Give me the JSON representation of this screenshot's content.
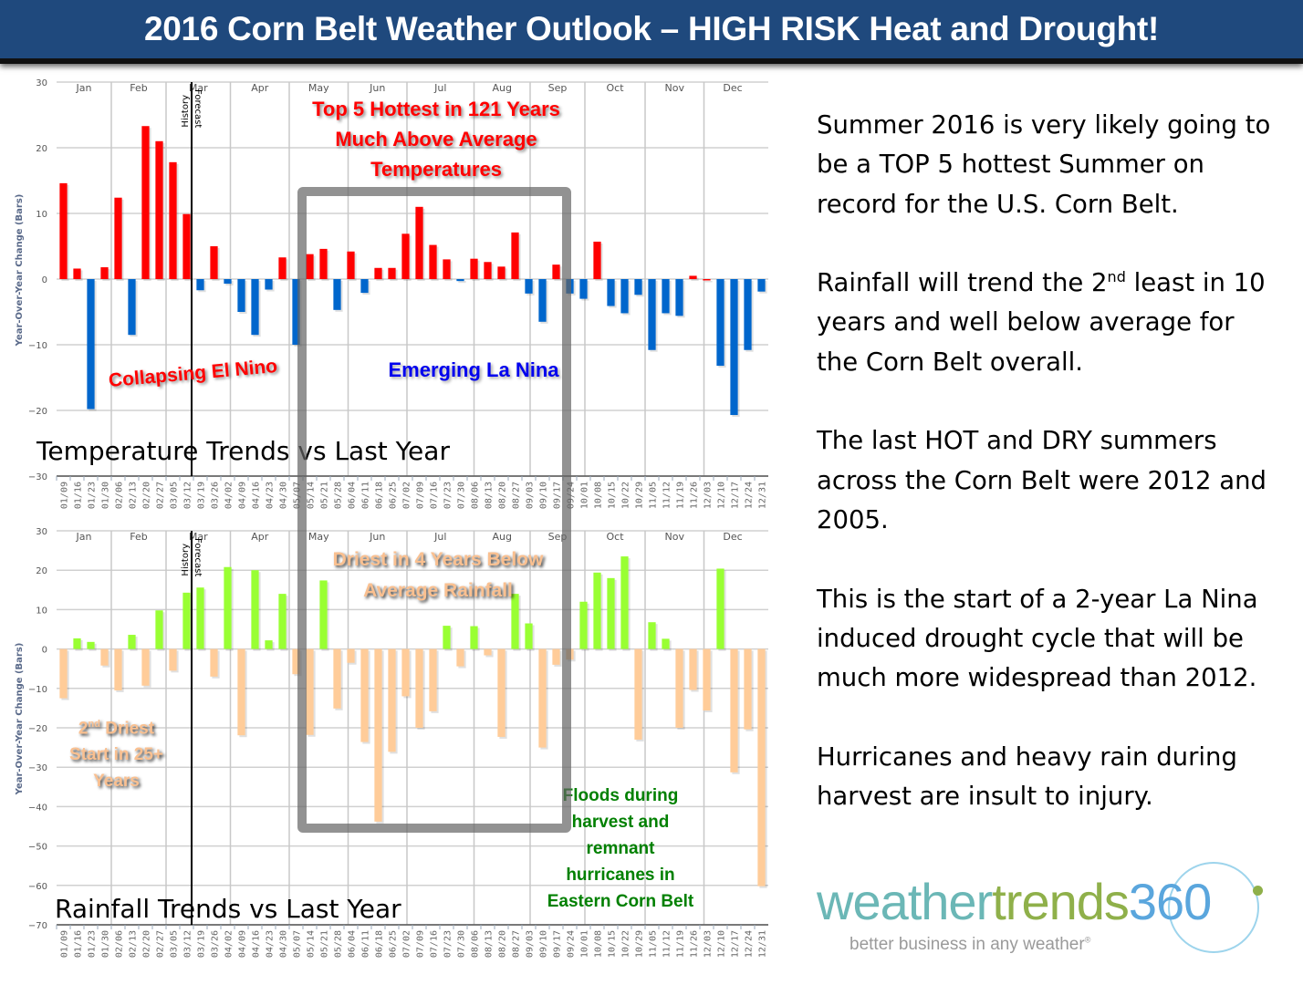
{
  "header": {
    "title": "2016 Corn Belt Weather Outlook – HIGH RISK Heat and Drought!"
  },
  "colors": {
    "title_bg": "#1f497d",
    "temp_positive": "#ff0000",
    "temp_negative": "#0066cc",
    "rain_positive": "#99ff33",
    "rain_negative": "#ffcc99",
    "annotation_red": "#ff0000",
    "annotation_blue": "#0000ee",
    "annotation_orange": "#fac090",
    "annotation_green": "#008000"
  },
  "chart_data": [
    {
      "type": "bar",
      "title": "Temperature Trends vs Last Year",
      "ylabel": "Year-Over-Year Change (Bars)",
      "xlabel": "",
      "ylim": [
        -30,
        30
      ],
      "yticks": [
        "30",
        "20",
        "10",
        "0",
        "−10",
        "−20",
        "−30"
      ],
      "grid": true,
      "months": [
        "Jan",
        "Feb",
        "Mar",
        "Apr",
        "May",
        "Jun",
        "Jul",
        "Aug",
        "Sep",
        "Oct",
        "Nov",
        "Dec"
      ],
      "history_label": "History",
      "forecast_label": "Forecast",
      "categories": [
        "01/09",
        "01/16",
        "01/23",
        "01/30",
        "02/06",
        "02/13",
        "02/20",
        "02/27",
        "03/05",
        "03/12",
        "03/19",
        "03/26",
        "04/02",
        "04/09",
        "04/16",
        "04/23",
        "04/30",
        "05/07",
        "05/14",
        "05/21",
        "05/28",
        "06/04",
        "06/11",
        "06/18",
        "06/25",
        "07/02",
        "07/09",
        "07/16",
        "07/23",
        "07/30",
        "08/06",
        "08/13",
        "08/20",
        "08/27",
        "09/03",
        "09/10",
        "09/17",
        "09/24",
        "10/01",
        "10/08",
        "10/15",
        "10/22",
        "10/29",
        "11/05",
        "11/12",
        "11/19",
        "11/26",
        "12/03",
        "12/10",
        "12/17",
        "12/24",
        "12/31"
      ],
      "values": [
        14.6,
        1.6,
        -19.8,
        1.8,
        12.4,
        -8.5,
        23.3,
        21.0,
        17.8,
        9.9,
        -1.7,
        5.0,
        -0.7,
        -5.0,
        -8.5,
        -1.6,
        3.3,
        -10.0,
        3.8,
        4.6,
        -4.7,
        4.2,
        -2.1,
        1.7,
        1.7,
        6.9,
        11.0,
        5.2,
        3.0,
        -0.3,
        3.1,
        2.6,
        1.9,
        7.1,
        -2.2,
        -6.5,
        2.2,
        -2.2,
        -3.0,
        5.7,
        -4.1,
        -5.2,
        -2.4,
        -10.8,
        -5.2,
        -5.6,
        0.5,
        0.0,
        -13.2,
        -20.7,
        -10.8,
        -1.9
      ],
      "annotations": [
        "Top 5 Hottest in 121 Years",
        "Much Above Average",
        "Temperatures",
        "Collapsing El Nino",
        "Emerging La Nina"
      ]
    },
    {
      "type": "bar",
      "title": "Rainfall Trends vs Last Year",
      "ylabel": "Year-Over-Year Change (Bars)",
      "xlabel": "",
      "ylim": [
        -70,
        30
      ],
      "yticks": [
        "30",
        "20",
        "10",
        "0",
        "−10",
        "−20",
        "−30",
        "−40",
        "−50",
        "−60",
        "−70"
      ],
      "grid": true,
      "months": [
        "Jan",
        "Feb",
        "Mar",
        "Apr",
        "May",
        "Jun",
        "Jul",
        "Aug",
        "Sep",
        "Oct",
        "Nov",
        "Dec"
      ],
      "history_label": "History",
      "forecast_label": "Forecast",
      "categories": [
        "01/09",
        "01/16",
        "01/23",
        "01/30",
        "02/06",
        "02/13",
        "02/20",
        "02/27",
        "03/05",
        "03/12",
        "03/19",
        "03/26",
        "04/02",
        "04/09",
        "04/16",
        "04/23",
        "04/30",
        "05/07",
        "05/14",
        "05/21",
        "05/28",
        "06/04",
        "06/11",
        "06/18",
        "06/25",
        "07/02",
        "07/09",
        "07/16",
        "07/23",
        "07/30",
        "08/06",
        "08/13",
        "08/20",
        "08/27",
        "09/03",
        "09/10",
        "09/17",
        "09/24",
        "10/01",
        "10/08",
        "10/15",
        "10/22",
        "10/29",
        "11/05",
        "11/12",
        "11/19",
        "11/26",
        "12/03",
        "12/10",
        "12/17",
        "12/24",
        "12/31"
      ],
      "values": [
        -12.5,
        2.7,
        1.8,
        -4.2,
        -10.5,
        3.6,
        -9.3,
        9.8,
        -5.5,
        14.3,
        15.6,
        -7.0,
        20.8,
        -21.9,
        20.0,
        2.2,
        14.0,
        -6.4,
        -21.8,
        17.4,
        -15.1,
        -3.5,
        -23.6,
        -43.8,
        -26.1,
        -12.0,
        -20.0,
        -15.8,
        5.9,
        -4.4,
        5.8,
        -1.6,
        -22.3,
        14.0,
        6.5,
        -25.0,
        -4.0,
        -2.7,
        12.0,
        19.4,
        18.0,
        23.5,
        -23.0,
        6.8,
        2.6,
        -20.0,
        -10.4,
        -15.6,
        20.4,
        -31.3,
        -20.4,
        -60.2
      ],
      "annotations": [
        "Driest in 4 Years Below",
        "Average Rainfall",
        "2nd Driest",
        "Start in 25+",
        "Years",
        "Floods during",
        "harvest and",
        "remnant",
        "hurricanes in",
        "Eastern Corn Belt"
      ]
    }
  ],
  "annotations": {
    "temp_line1": "Top 5 Hottest in 121 Years",
    "temp_line2": "Much Above Average",
    "temp_line3": "Temperatures",
    "el_nino": "Collapsing El Nino",
    "la_nina": "Emerging La Nina",
    "rain_line1": "Driest in 4 Years Below",
    "rain_line2": "Average Rainfall",
    "driest_num": "2",
    "driest_sup": "nd",
    "driest_rest": " Driest",
    "driest_line2": "Start in 25+",
    "driest_line3": "Years",
    "floods_line1": "Floods during",
    "floods_line2": "harvest and",
    "floods_line3": "remnant",
    "floods_line4": "hurricanes in",
    "floods_line5": "Eastern Corn Belt"
  },
  "summary": {
    "p1": "Summer 2016 is very likely going to be a TOP 5 hottest Summer on record for the U.S. Corn Belt.",
    "p2_a": "Rainfall will trend the 2",
    "p2_sup": "nd",
    "p2_b": " least in 10 years and well below average for the Corn Belt overall.",
    "p3": "The last HOT and DRY summers across the Corn Belt were 2012 and 2005.",
    "p4": "This is the start of a 2-year La Nina induced drought cycle that will be much more widespread than 2012.",
    "p5": "Hurricanes and heavy rain during harvest are insult to injury."
  },
  "logo": {
    "word1": "weather",
    "word2": "trends",
    "word3": "360",
    "tagline": "better business in any weather",
    "registered": "®"
  }
}
